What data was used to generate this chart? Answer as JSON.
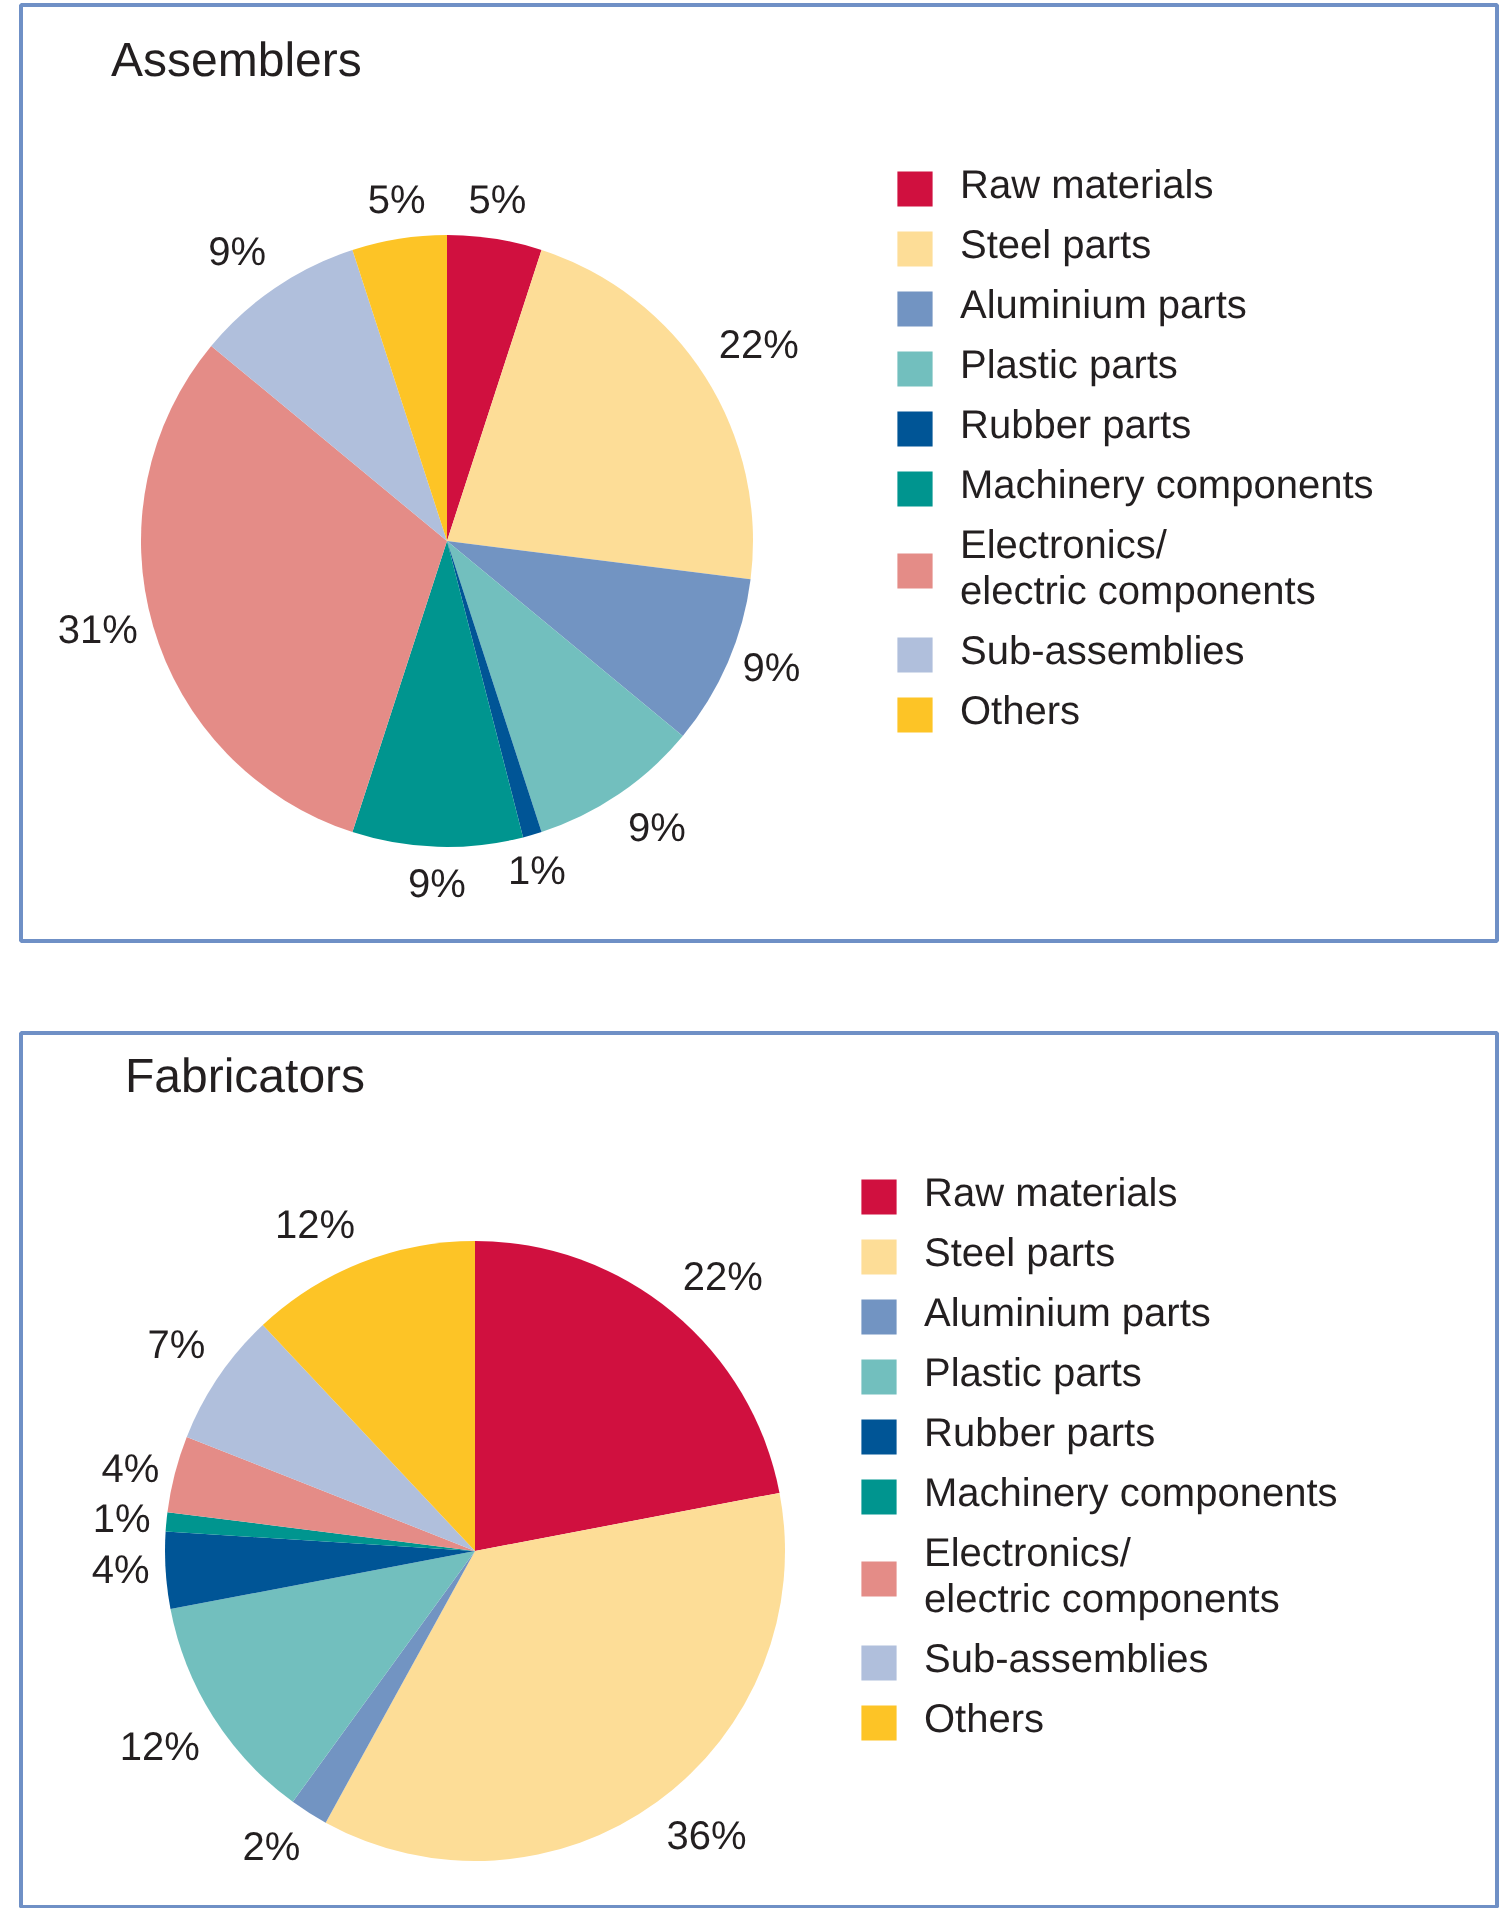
{
  "chart_data": [
    {
      "type": "pie",
      "title": "Assemblers",
      "legend": "right",
      "categories": [
        "Raw materials",
        "Steel parts",
        "Aluminium parts",
        "Plastic parts",
        "Rubber parts",
        "Machinery components",
        "Electronics/\nelectric components",
        "Sub-assemblies",
        "Others"
      ],
      "values": [
        5,
        22,
        9,
        9,
        1,
        9,
        31,
        9,
        5
      ],
      "value_labels": [
        "5%",
        "22%",
        "9%",
        "9%",
        "1%",
        "9%",
        "31%",
        "9%",
        "5%"
      ],
      "colors": [
        "#d0103f",
        "#fddd97",
        "#7294c2",
        "#72bfbe",
        "#005596",
        "#00958f",
        "#e48c87",
        "#b0bfdc",
        "#fdc426"
      ]
    },
    {
      "type": "pie",
      "title": "Fabricators",
      "legend": "right",
      "categories": [
        "Raw materials",
        "Steel parts",
        "Aluminium parts",
        "Plastic parts",
        "Rubber parts",
        "Machinery components",
        "Electronics/\nelectric components",
        "Sub-assemblies",
        "Others"
      ],
      "values": [
        22,
        36,
        2,
        12,
        4,
        1,
        4,
        7,
        12
      ],
      "value_labels": [
        "22%",
        "36%",
        "2%",
        "12%",
        "4%",
        "1%",
        "4%",
        "7%",
        "12%"
      ],
      "colors": [
        "#d0103f",
        "#fddd97",
        "#7294c2",
        "#72bfbe",
        "#005596",
        "#00958f",
        "#e48c87",
        "#b0bfdc",
        "#fdc426"
      ]
    }
  ]
}
